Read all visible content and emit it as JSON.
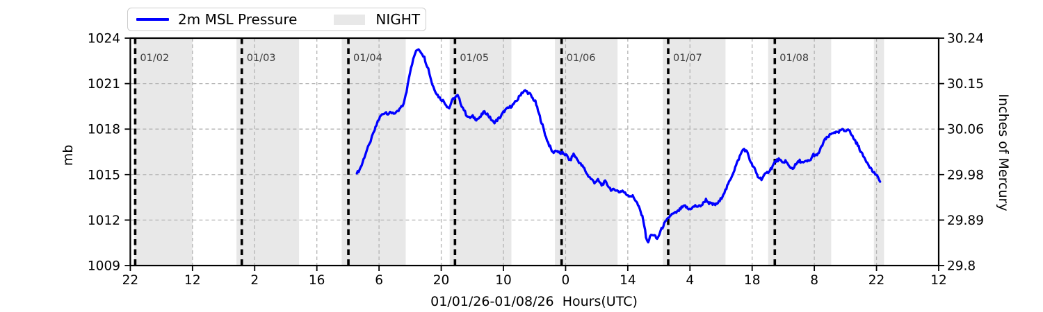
{
  "chart_data": {
    "type": "line",
    "title": "",
    "x_axis": {
      "label": "01/01/26-01/08/26  Hours(UTC)",
      "range_hours": [
        0,
        182
      ],
      "tick_interval_hours": 14,
      "tick_labels": [
        "22",
        "12",
        "2",
        "16",
        "6",
        "20",
        "10",
        "0",
        "14",
        "4",
        "18",
        "8",
        "22",
        "12"
      ]
    },
    "y_axis_left": {
      "label": "mb",
      "range": [
        1009,
        1024
      ],
      "ticks": [
        "1009",
        "1012",
        "1015",
        "1018",
        "1021",
        "1024"
      ]
    },
    "y_axis_right": {
      "label": "Inches of Mercury",
      "ticks": [
        "29.8",
        "29.89",
        "29.98",
        "30.06",
        "30.15",
        "30.24"
      ]
    },
    "grid": {
      "show": true,
      "color": "#b3b3b3"
    },
    "night_bands": {
      "label": "NIGHT",
      "color": "#e8e8e8",
      "intervals_hours": [
        [
          0.9,
          14.0
        ],
        [
          23.9,
          38.0
        ],
        [
          47.6,
          62.0
        ],
        [
          71.9,
          85.8
        ],
        [
          95.6,
          109.7
        ],
        [
          119.9,
          134.0
        ],
        [
          143.6,
          157.8
        ],
        [
          167.4,
          169.7
        ]
      ]
    },
    "date_lines": {
      "labels": [
        "01/02",
        "01/03",
        "01/04",
        "01/05",
        "01/06",
        "01/07",
        "01/08"
      ],
      "hours": [
        1.1,
        25.1,
        49.1,
        73.1,
        97.1,
        121.1,
        145.1
      ],
      "color": "#000000",
      "label_color": "#3d3d3d"
    },
    "series": [
      {
        "name": "2m MSL Pressure",
        "color": "#0000ff",
        "points": [
          [
            51.0,
            1015.08
          ],
          [
            51.6,
            1015.31
          ],
          [
            52.1,
            1015.63
          ],
          [
            52.5,
            1016.0
          ],
          [
            52.9,
            1016.32
          ],
          [
            53.2,
            1016.55
          ],
          [
            53.5,
            1016.77
          ],
          [
            53.8,
            1016.96
          ],
          [
            54.1,
            1017.23
          ],
          [
            54.4,
            1017.46
          ],
          [
            54.7,
            1017.69
          ],
          [
            55.0,
            1017.92
          ],
          [
            55.4,
            1018.24
          ],
          [
            55.7,
            1018.51
          ],
          [
            56.0,
            1018.65
          ],
          [
            56.4,
            1018.88
          ],
          [
            57.1,
            1019.06
          ],
          [
            57.6,
            1019.11
          ],
          [
            58.0,
            1019.02
          ],
          [
            58.7,
            1019.06
          ],
          [
            59.1,
            1019.11
          ],
          [
            59.6,
            1019.02
          ],
          [
            59.9,
            1019.06
          ],
          [
            60.4,
            1019.2
          ],
          [
            60.8,
            1019.38
          ],
          [
            61.3,
            1019.52
          ],
          [
            61.8,
            1019.98
          ],
          [
            62.2,
            1020.48
          ],
          [
            62.7,
            1021.39
          ],
          [
            63.2,
            1022.08
          ],
          [
            63.7,
            1022.58
          ],
          [
            64.1,
            1022.99
          ],
          [
            64.6,
            1023.22
          ],
          [
            64.9,
            1023.31
          ],
          [
            65.2,
            1023.18
          ],
          [
            65.7,
            1022.99
          ],
          [
            66.2,
            1022.72
          ],
          [
            66.6,
            1022.35
          ],
          [
            67.1,
            1021.99
          ],
          [
            67.6,
            1021.39
          ],
          [
            68.0,
            1020.94
          ],
          [
            68.5,
            1020.62
          ],
          [
            69.0,
            1020.34
          ],
          [
            69.4,
            1020.16
          ],
          [
            69.9,
            1019.98
          ],
          [
            70.4,
            1019.88
          ],
          [
            70.9,
            1019.7
          ],
          [
            71.3,
            1019.52
          ],
          [
            71.8,
            1019.38
          ],
          [
            72.3,
            1019.79
          ],
          [
            72.7,
            1019.98
          ],
          [
            73.2,
            1020.11
          ],
          [
            73.7,
            1020.2
          ],
          [
            74.1,
            1019.93
          ],
          [
            74.6,
            1019.56
          ],
          [
            75.1,
            1019.29
          ],
          [
            75.6,
            1018.97
          ],
          [
            76.3,
            1018.74
          ],
          [
            77.1,
            1018.83
          ],
          [
            77.9,
            1018.65
          ],
          [
            78.7,
            1018.74
          ],
          [
            79.5,
            1019.11
          ],
          [
            80.2,
            1019.06
          ],
          [
            81.0,
            1018.74
          ],
          [
            81.8,
            1018.42
          ],
          [
            82.6,
            1018.6
          ],
          [
            83.4,
            1018.83
          ],
          [
            84.2,
            1019.2
          ],
          [
            84.9,
            1019.35
          ],
          [
            85.7,
            1019.5
          ],
          [
            86.5,
            1019.7
          ],
          [
            87.3,
            1020.0
          ],
          [
            88.1,
            1020.4
          ],
          [
            88.9,
            1020.52
          ],
          [
            89.3,
            1020.46
          ],
          [
            90.0,
            1020.3
          ],
          [
            90.4,
            1020.1
          ],
          [
            91.2,
            1019.8
          ],
          [
            92.0,
            1019.0
          ],
          [
            92.8,
            1018.25
          ],
          [
            93.6,
            1017.45
          ],
          [
            94.3,
            1016.95
          ],
          [
            95.1,
            1016.45
          ],
          [
            95.9,
            1016.6
          ],
          [
            96.7,
            1016.4
          ],
          [
            97.5,
            1016.42
          ],
          [
            98.3,
            1016.23
          ],
          [
            99.0,
            1015.91
          ],
          [
            99.8,
            1016.36
          ],
          [
            100.6,
            1016.0
          ],
          [
            101.4,
            1015.68
          ],
          [
            102.2,
            1015.4
          ],
          [
            102.9,
            1014.99
          ],
          [
            103.7,
            1014.72
          ],
          [
            104.5,
            1014.49
          ],
          [
            105.3,
            1014.63
          ],
          [
            106.1,
            1014.31
          ],
          [
            106.9,
            1014.53
          ],
          [
            107.6,
            1014.26
          ],
          [
            108.4,
            1013.94
          ],
          [
            109.2,
            1014.03
          ],
          [
            110.0,
            1013.85
          ],
          [
            110.8,
            1013.94
          ],
          [
            111.6,
            1013.71
          ],
          [
            112.3,
            1013.62
          ],
          [
            113.1,
            1013.57
          ],
          [
            113.9,
            1013.25
          ],
          [
            114.7,
            1012.7
          ],
          [
            115.5,
            1012.02
          ],
          [
            116.1,
            1010.92
          ],
          [
            116.6,
            1010.46
          ],
          [
            117.0,
            1010.92
          ],
          [
            117.5,
            1011.06
          ],
          [
            118.0,
            1010.97
          ],
          [
            118.6,
            1010.74
          ],
          [
            119.1,
            1011.06
          ],
          [
            119.4,
            1011.29
          ],
          [
            120.2,
            1011.74
          ],
          [
            120.9,
            1012.02
          ],
          [
            121.7,
            1012.34
          ],
          [
            122.5,
            1012.43
          ],
          [
            123.3,
            1012.57
          ],
          [
            124.1,
            1012.8
          ],
          [
            124.9,
            1012.93
          ],
          [
            125.7,
            1012.7
          ],
          [
            126.4,
            1012.8
          ],
          [
            127.2,
            1012.93
          ],
          [
            128.0,
            1012.89
          ],
          [
            128.8,
            1013.03
          ],
          [
            129.6,
            1013.35
          ],
          [
            130.3,
            1013.12
          ],
          [
            131.1,
            1013.03
          ],
          [
            131.9,
            1013.03
          ],
          [
            132.7,
            1013.25
          ],
          [
            133.5,
            1013.71
          ],
          [
            134.2,
            1014.08
          ],
          [
            135.0,
            1014.63
          ],
          [
            135.8,
            1015.18
          ],
          [
            136.6,
            1015.77
          ],
          [
            137.4,
            1016.32
          ],
          [
            137.9,
            1016.64
          ],
          [
            138.2,
            1016.68
          ],
          [
            138.6,
            1016.55
          ],
          [
            139.0,
            1016.45
          ],
          [
            139.7,
            1015.77
          ],
          [
            140.5,
            1015.4
          ],
          [
            141.3,
            1014.85
          ],
          [
            142.1,
            1014.72
          ],
          [
            142.9,
            1014.99
          ],
          [
            143.6,
            1015.18
          ],
          [
            144.4,
            1015.45
          ],
          [
            145.2,
            1015.86
          ],
          [
            146.0,
            1016.0
          ],
          [
            146.8,
            1015.77
          ],
          [
            147.5,
            1015.91
          ],
          [
            148.3,
            1015.54
          ],
          [
            149.1,
            1015.4
          ],
          [
            149.9,
            1015.68
          ],
          [
            150.7,
            1015.91
          ],
          [
            151.5,
            1015.77
          ],
          [
            152.2,
            1015.86
          ],
          [
            153.0,
            1015.91
          ],
          [
            153.8,
            1016.32
          ],
          [
            154.6,
            1016.23
          ],
          [
            155.4,
            1016.68
          ],
          [
            156.2,
            1017.23
          ],
          [
            157.0,
            1017.46
          ],
          [
            157.7,
            1017.64
          ],
          [
            158.5,
            1017.83
          ],
          [
            159.3,
            1017.73
          ],
          [
            160.1,
            1017.96
          ],
          [
            160.9,
            1017.87
          ],
          [
            161.6,
            1018.05
          ],
          [
            162.4,
            1017.6
          ],
          [
            163.2,
            1017.23
          ],
          [
            164.0,
            1016.82
          ],
          [
            164.8,
            1016.32
          ],
          [
            165.5,
            1016.0
          ],
          [
            166.3,
            1015.63
          ],
          [
            167.1,
            1015.22
          ],
          [
            167.9,
            1014.99
          ],
          [
            168.4,
            1014.72
          ],
          [
            168.8,
            1014.53
          ]
        ]
      }
    ]
  }
}
